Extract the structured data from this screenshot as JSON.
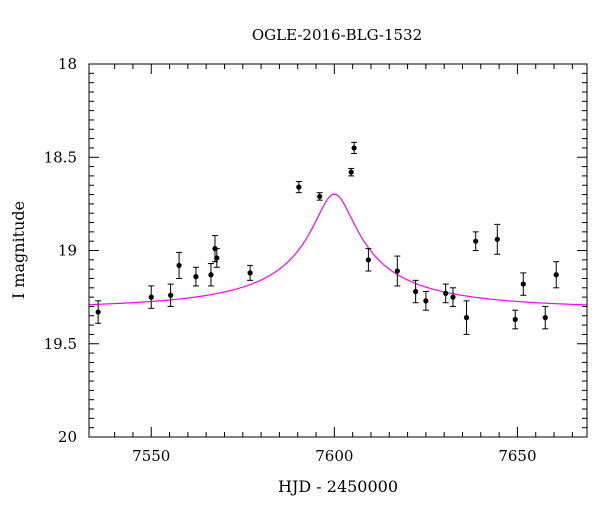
{
  "chart_data": {
    "type": "scatter",
    "title": "OGLE-2016-BLG-1532",
    "xlabel": "HJD - 2450000",
    "ylabel": "I magnitude",
    "xlim": [
      7533,
      7669
    ],
    "ylim": [
      18,
      20
    ],
    "y_inverted": true,
    "x_ticks": [
      7550,
      7600,
      7650
    ],
    "x_tick_labels": [
      "7550",
      "7600",
      "7650"
    ],
    "y_ticks": [
      18,
      18.5,
      19,
      19.5,
      20
    ],
    "y_tick_labels": [
      "18",
      "18.5",
      "19",
      "19.5",
      "20"
    ],
    "grid": false,
    "series": [
      {
        "kind": "points_with_errorbars",
        "color": "#000000",
        "points": [
          {
            "x": 7535.5,
            "y": 19.33,
            "err": 0.06
          },
          {
            "x": 7550.0,
            "y": 19.25,
            "err": 0.06
          },
          {
            "x": 7555.3,
            "y": 19.24,
            "err": 0.06
          },
          {
            "x": 7557.6,
            "y": 19.08,
            "err": 0.07
          },
          {
            "x": 7562.2,
            "y": 19.14,
            "err": 0.05
          },
          {
            "x": 7566.3,
            "y": 19.13,
            "err": 0.06
          },
          {
            "x": 7567.4,
            "y": 18.99,
            "err": 0.07
          },
          {
            "x": 7567.9,
            "y": 19.04,
            "err": 0.05
          },
          {
            "x": 7577.0,
            "y": 19.12,
            "err": 0.04
          },
          {
            "x": 7590.3,
            "y": 18.66,
            "err": 0.03
          },
          {
            "x": 7596.0,
            "y": 18.71,
            "err": 0.02
          },
          {
            "x": 7604.6,
            "y": 18.58,
            "err": 0.02
          },
          {
            "x": 7605.4,
            "y": 18.45,
            "err": 0.03
          },
          {
            "x": 7609.3,
            "y": 19.05,
            "err": 0.06
          },
          {
            "x": 7617.2,
            "y": 19.11,
            "err": 0.08
          },
          {
            "x": 7622.2,
            "y": 19.22,
            "err": 0.06
          },
          {
            "x": 7625.0,
            "y": 19.27,
            "err": 0.05
          },
          {
            "x": 7630.4,
            "y": 19.23,
            "err": 0.05
          },
          {
            "x": 7632.4,
            "y": 19.25,
            "err": 0.05
          },
          {
            "x": 7636.1,
            "y": 19.36,
            "err": 0.09
          },
          {
            "x": 7638.6,
            "y": 18.95,
            "err": 0.05
          },
          {
            "x": 7644.5,
            "y": 18.94,
            "err": 0.08
          },
          {
            "x": 7649.4,
            "y": 19.37,
            "err": 0.05
          },
          {
            "x": 7651.6,
            "y": 19.18,
            "err": 0.06
          },
          {
            "x": 7657.6,
            "y": 19.36,
            "err": 0.06
          },
          {
            "x": 7660.6,
            "y": 19.13,
            "err": 0.07
          }
        ]
      },
      {
        "kind": "model_curve",
        "color": "#ff00ff",
        "model": {
          "t0": 7600,
          "u0": 0.1,
          "tE": 55,
          "f_source": 0.0838,
          "m_base": 19.31
        },
        "x_range": [
          7533,
          7669
        ]
      }
    ]
  }
}
